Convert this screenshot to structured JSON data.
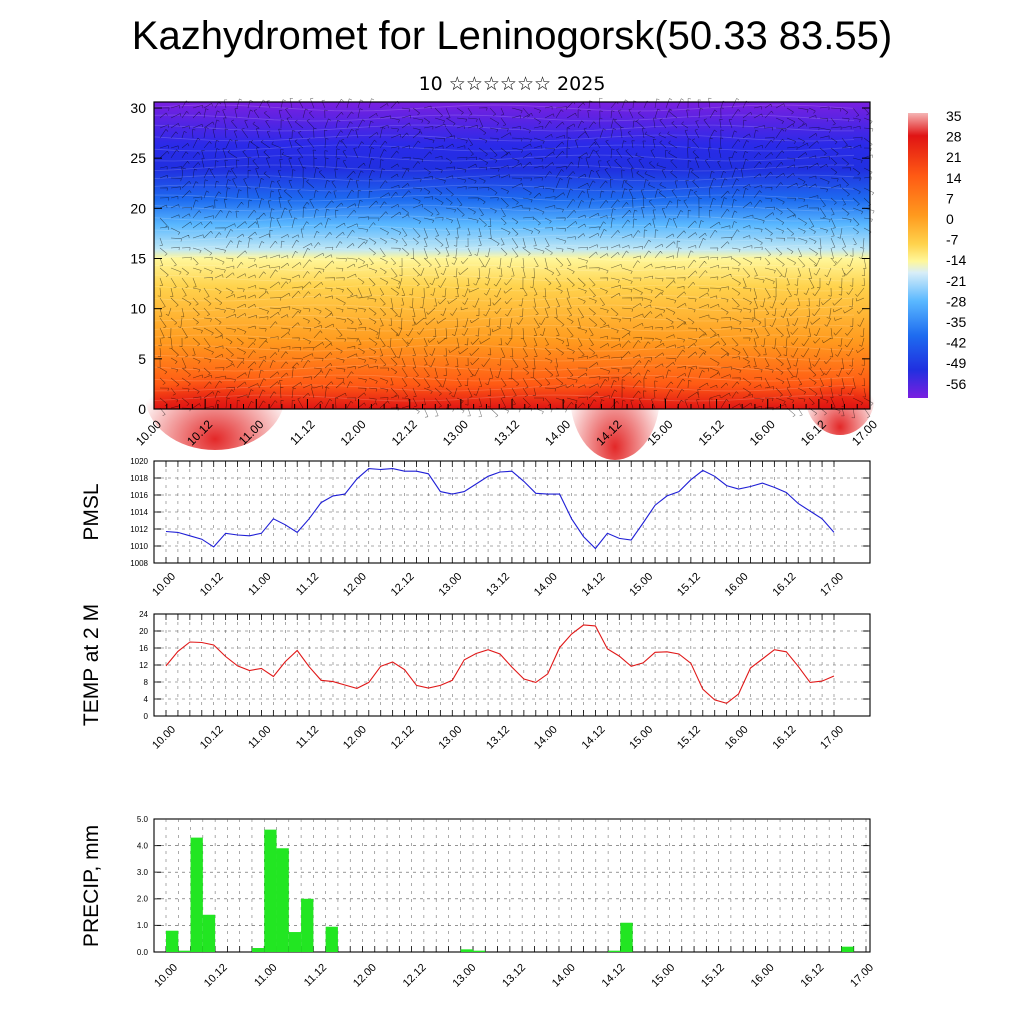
{
  "title": "Kazhydromet for Leninogorsk(50.33 83.55)",
  "subtitle": "10 ☆☆☆☆☆☆ 2025",
  "colors": {
    "pmsl_line": "#1f1fd6",
    "temp_line": "#e01818",
    "precip_bar": "#22e622",
    "palette": [
      "#7a1fe0",
      "#2030e8",
      "#1e88ff",
      "#9fd6f5",
      "#fff79a",
      "#ffd34d",
      "#ff9a1e",
      "#ff5a14",
      "#e01414",
      "#f5b5b5"
    ]
  },
  "chart_data": [
    {
      "type": "heatmap",
      "ylim": [
        0,
        30
      ],
      "y_ticks": [
        "0",
        "5",
        "10",
        "15",
        "20",
        "25",
        "30"
      ],
      "x_ticks": [
        "10.00",
        "10.12",
        "11.00",
        "11.12",
        "12.00",
        "12.12",
        "13.00",
        "13.12",
        "14.00",
        "14.12",
        "15.00",
        "15.12",
        "16.00",
        "16.12",
        "17.00"
      ],
      "colorbar_labels": [
        "35",
        "28",
        "21",
        "14",
        "7",
        "0",
        "-7",
        "-14",
        "-21",
        "-28",
        "-35",
        "-42",
        "-49",
        "-56"
      ],
      "grid": false
    },
    {
      "type": "line",
      "ylabel": "PMSL",
      "ylim": [
        1008,
        1020
      ],
      "y_ticks": [
        "1020",
        "1018",
        "1016",
        "1014",
        "1012",
        "1010",
        "1008"
      ],
      "x_ticks": [
        "10.00",
        "10.12",
        "11.00",
        "11.12",
        "12.00",
        "12.12",
        "13.00",
        "13.12",
        "14.00",
        "14.12",
        "15.00",
        "15.12",
        "16.00",
        "16.12",
        "17.00"
      ],
      "series": [
        {
          "values": [
            1011.7,
            1011.6,
            1011.2,
            1010.8,
            1009.9,
            1011.5,
            1011.3,
            1011.2,
            1011.5,
            1013.2,
            1012.5,
            1011.6,
            1013.2,
            1015.1,
            1015.9,
            1016.1,
            1017.9,
            1019.1,
            1019.0,
            1019.1,
            1018.8,
            1018.8,
            1018.5,
            1016.4,
            1016.1,
            1016.4,
            1017.3,
            1018.2,
            1018.7,
            1018.8,
            1017.6,
            1016.2,
            1016.1,
            1016.1,
            1013.2,
            1011.1,
            1009.7,
            1011.5,
            1010.9,
            1010.7,
            1012.7,
            1014.8,
            1015.9,
            1016.4,
            1017.8,
            1018.9,
            1018.2,
            1017.1,
            1016.7,
            1017.0,
            1017.4,
            1016.9,
            1016.3,
            1015.0,
            1014.1,
            1013.2,
            1011.6
          ]
        }
      ],
      "grid": true
    },
    {
      "type": "line",
      "ylabel": "TEMP at 2 M",
      "ylim": [
        0,
        24
      ],
      "y_ticks": [
        "24",
        "20",
        "16",
        "12",
        "8",
        "4",
        "0"
      ],
      "x_ticks": [
        "10.00",
        "10.12",
        "11.00",
        "11.12",
        "12.00",
        "12.12",
        "13.00",
        "13.12",
        "14.00",
        "14.12",
        "15.00",
        "15.12",
        "16.00",
        "16.12",
        "17.00"
      ],
      "series": [
        {
          "values": [
            11.8,
            15.2,
            17.4,
            17.3,
            16.7,
            14.0,
            11.8,
            10.7,
            11.2,
            9.3,
            12.8,
            15.4,
            11.6,
            8.4,
            8.1,
            7.3,
            6.5,
            7.9,
            11.7,
            12.7,
            10.9,
            7.2,
            6.6,
            7.2,
            8.4,
            13.2,
            14.7,
            15.6,
            14.6,
            11.5,
            8.7,
            7.9,
            9.9,
            16.1,
            19.3,
            21.4,
            21.2,
            15.8,
            14.1,
            11.7,
            12.5,
            15.0,
            15.1,
            14.6,
            12.4,
            6.3,
            3.8,
            3.0,
            5.2,
            11.3,
            13.4,
            15.6,
            15.1,
            11.7,
            7.9,
            8.2,
            9.4
          ]
        }
      ],
      "grid": true
    },
    {
      "type": "bar",
      "ylabel": "PRECIP, mm",
      "ylim": [
        0,
        5
      ],
      "y_ticks": [
        "5.0",
        "4.0",
        "3.0",
        "2.0",
        "1.0",
        "0.0"
      ],
      "x_ticks": [
        "10.00",
        "10.12",
        "11.00",
        "11.12",
        "12.00",
        "12.12",
        "13.00",
        "13.12",
        "14.00",
        "14.12",
        "15.00",
        "15.12",
        "16.00",
        "16.12",
        "17.00"
      ],
      "series": [
        {
          "values": [
            0.8,
            0.05,
            4.3,
            1.4,
            0,
            0,
            0,
            0.15,
            4.6,
            3.9,
            0.75,
            2.0,
            0,
            0.95,
            0,
            0,
            0,
            0,
            0,
            0,
            0,
            0,
            0,
            0,
            0.1,
            0.05,
            0,
            0,
            0,
            0,
            0,
            0,
            0,
            0,
            0,
            0,
            0.05,
            1.1,
            0,
            0,
            0,
            0,
            0,
            0,
            0,
            0,
            0,
            0,
            0,
            0,
            0,
            0,
            0,
            0,
            0,
            0.2,
            0
          ]
        }
      ],
      "grid": true
    }
  ]
}
